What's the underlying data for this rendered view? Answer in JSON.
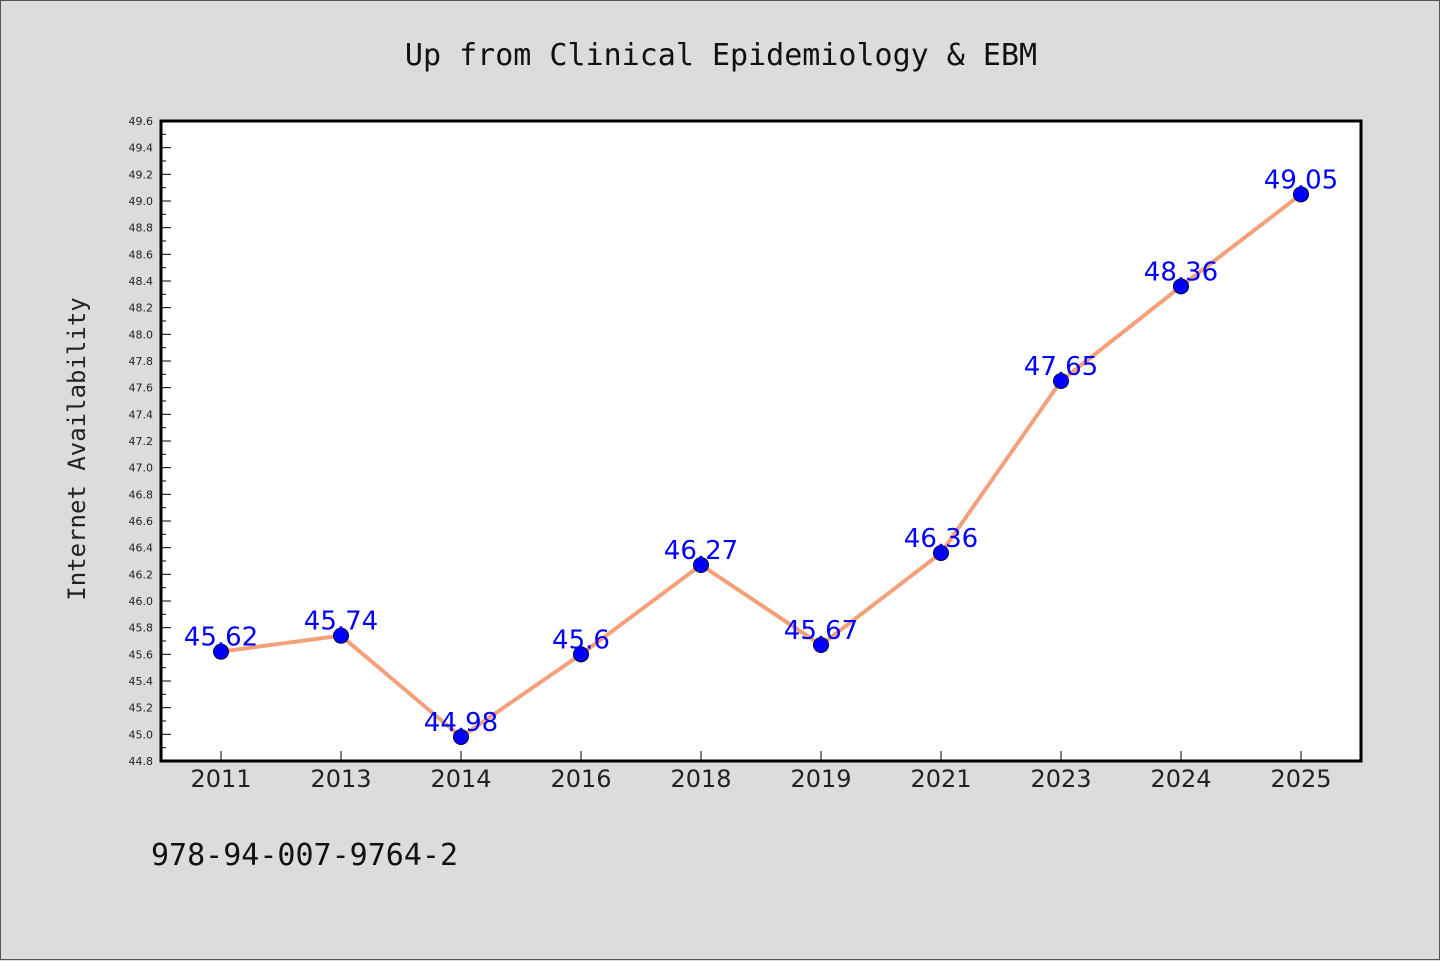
{
  "chart_data": {
    "type": "line",
    "title": "Up from Clinical Epidemiology & EBM",
    "xlabel": "",
    "ylabel": "Internet Availability",
    "categories": [
      "2011",
      "2013",
      "2014",
      "2016",
      "2018",
      "2019",
      "2021",
      "2023",
      "2024",
      "2025"
    ],
    "series": [
      {
        "values": [
          45.62,
          45.74,
          44.98,
          45.6,
          46.27,
          45.67,
          46.36,
          47.65,
          48.36,
          49.05
        ],
        "labels": [
          "45.62",
          "45.74",
          "44.98",
          "45.6",
          "46.27",
          "45.67",
          "46.36",
          "47.65",
          "48.36",
          "49.05"
        ],
        "line_color": "#f4a07a",
        "marker_color": "#0000ff"
      }
    ],
    "ylim": [
      44.8,
      49.6
    ],
    "yticks": [
      "44.8",
      "45.0",
      "45.2",
      "45.4",
      "45.6",
      "45.8",
      "46.0",
      "46.2",
      "46.4",
      "46.6",
      "46.8",
      "47.0",
      "47.2",
      "47.4",
      "47.6",
      "47.8",
      "48.0",
      "48.2",
      "48.4",
      "48.6",
      "48.8",
      "49.0",
      "49.2",
      "49.4",
      "49.6"
    ],
    "grid": false,
    "legend": "none"
  },
  "footer": {
    "isbn": "978-94-007-9764-2"
  },
  "colors": {
    "background": "#dcdcdc",
    "plot_background": "#ffffff",
    "data_label": "#0000ff"
  }
}
